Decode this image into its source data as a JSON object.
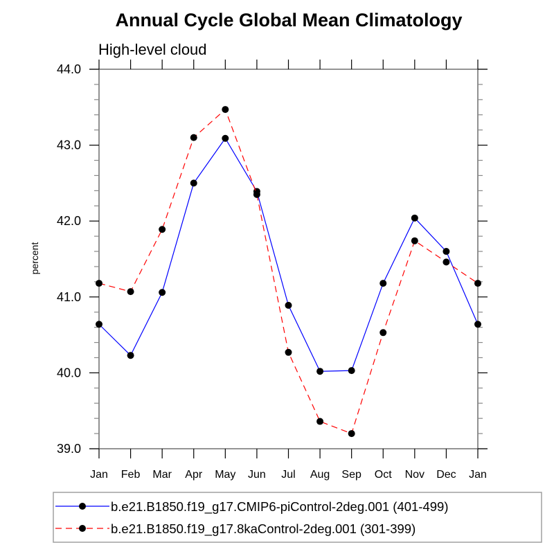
{
  "chart_data": {
    "type": "line",
    "title": "Annual Cycle Global Mean Climatology",
    "subtitle": "High-level cloud",
    "xlabel": "",
    "ylabel": "percent",
    "categories": [
      "Jan",
      "Feb",
      "Mar",
      "Apr",
      "May",
      "Jun",
      "Jul",
      "Aug",
      "Sep",
      "Oct",
      "Nov",
      "Dec",
      "Jan"
    ],
    "ylim": [
      39.0,
      44.0
    ],
    "yticks": [
      39.0,
      40.0,
      41.0,
      42.0,
      43.0,
      44.0
    ],
    "ytick_labels": [
      "39.0",
      "40.0",
      "41.0",
      "42.0",
      "43.0",
      "44.0"
    ],
    "yminor_step": 0.2,
    "grid": false,
    "legend_position": "bottom",
    "series": [
      {
        "name": "b.e21.B1850.f19_g17.CMIP6-piControl-2deg.001 (401-499)",
        "color": "#0000ff",
        "line_style": "solid",
        "marker": "filled-circle",
        "marker_color": "#000000",
        "values": [
          40.64,
          40.23,
          41.06,
          42.5,
          43.09,
          42.39,
          40.89,
          40.02,
          40.03,
          41.18,
          42.04,
          41.6,
          40.64
        ]
      },
      {
        "name": "b.e21.B1850.f19_g17.8kaControl-2deg.001 (301-399)",
        "color": "#ff0000",
        "line_style": "dashed",
        "marker": "filled-circle",
        "marker_color": "#000000",
        "values": [
          41.18,
          41.07,
          41.89,
          43.1,
          43.47,
          42.35,
          40.27,
          39.36,
          39.2,
          40.53,
          41.74,
          41.46,
          41.18
        ]
      }
    ]
  }
}
